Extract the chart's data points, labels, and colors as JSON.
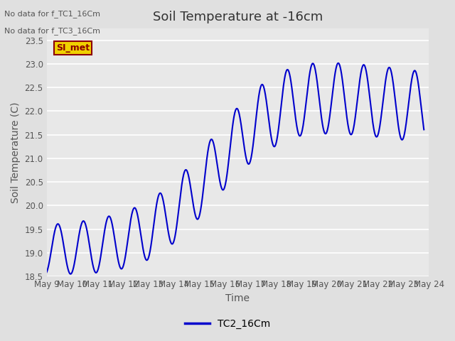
{
  "title": "Soil Temperature at -16cm",
  "xlabel": "Time",
  "ylabel": "Soil Temperature (C)",
  "ylim": [
    18.5,
    23.75
  ],
  "xlim_start": 0,
  "xlim_end": 15,
  "line_color": "#0000cc",
  "line_width": 1.5,
  "bg_color": "#e0e0e0",
  "plot_bg_color": "#e8e8e8",
  "no_data_text1": "No data for f_TC1_16Cm",
  "no_data_text2": "No data for f_TC3_16Cm",
  "si_met_label": "SI_met",
  "legend_label": "TC2_16Cm",
  "x_tick_labels": [
    "May 9",
    "May 10",
    "May 11",
    "May 12",
    "May 13",
    "May 14",
    "May 15",
    "May 16",
    "May 17",
    "May 18",
    "May 19",
    "May 20",
    "May 21",
    "May 22",
    "May 23",
    "May 24"
  ],
  "yticks": [
    18.5,
    19.0,
    19.5,
    20.0,
    20.5,
    21.0,
    21.5,
    22.0,
    22.5,
    23.0,
    23.5
  ],
  "title_fontsize": 13,
  "axis_label_fontsize": 10,
  "tick_fontsize": 8.5,
  "no_data_fontsize": 8,
  "legend_fontsize": 10
}
